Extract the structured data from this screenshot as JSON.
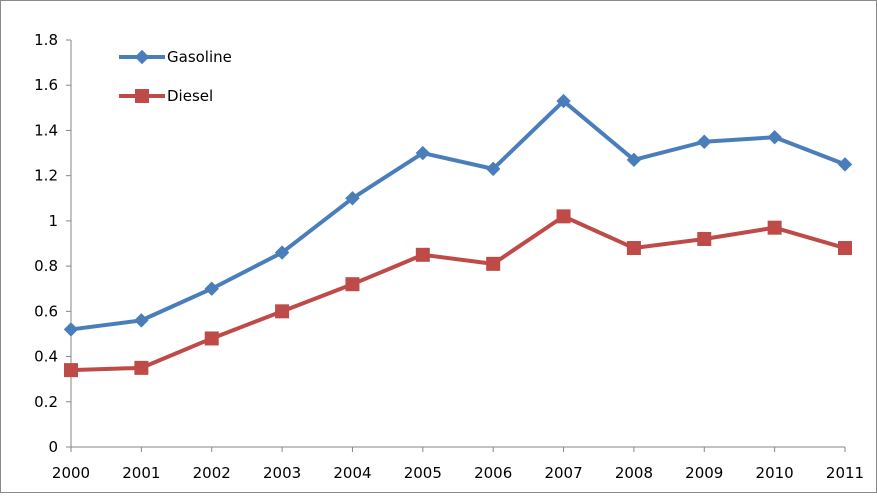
{
  "chart_data": {
    "type": "line",
    "title": "",
    "xlabel": "",
    "ylabel": "",
    "categories": [
      "2000",
      "2001",
      "2002",
      "2003",
      "2004",
      "2005",
      "2006",
      "2007",
      "2008",
      "2009",
      "2010",
      "2011"
    ],
    "ylim": [
      0,
      1.8
    ],
    "yticks": [
      "0",
      "0.2",
      "0.4",
      "0.6",
      "0.8",
      "1",
      "1.2",
      "1.4",
      "1.6",
      "1.8"
    ],
    "grid": false,
    "legend_position": "top-left",
    "series": [
      {
        "name": "Gasoline",
        "color": "#4a7ebb",
        "marker": "diamond",
        "values": [
          0.52,
          0.56,
          0.7,
          0.86,
          1.1,
          1.3,
          1.23,
          1.53,
          1.27,
          1.35,
          1.37,
          1.25
        ]
      },
      {
        "name": "Diesel",
        "color": "#be4b48",
        "marker": "square",
        "values": [
          0.34,
          0.35,
          0.48,
          0.6,
          0.72,
          0.85,
          0.81,
          1.02,
          0.88,
          0.92,
          0.97,
          0.88
        ]
      }
    ]
  }
}
